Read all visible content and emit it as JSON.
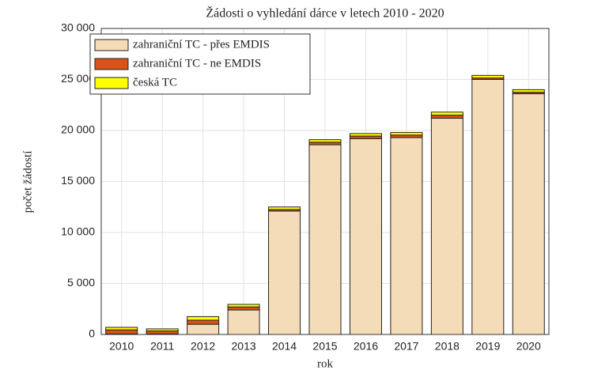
{
  "chart_data": {
    "type": "stacked_bar",
    "title": "Žádosti o vyhledání dárce v letech 2010 - 2020",
    "x_label": "rok",
    "y_label": "počet žádostí",
    "categories": [
      "2010",
      "2011",
      "2012",
      "2013",
      "2014",
      "2015",
      "2016",
      "2017",
      "2018",
      "2019",
      "2020"
    ],
    "series": [
      {
        "name": "zahraniční TC - přes EMDIS",
        "color": "#f5dcb8",
        "values": [
          50,
          50,
          1000,
          2400,
          12100,
          18600,
          19200,
          19300,
          21200,
          25000,
          23600
        ]
      },
      {
        "name": "zahraniční TC - ne EMDIS",
        "color": "#d95319",
        "values": [
          400,
          300,
          400,
          300,
          150,
          250,
          250,
          250,
          300,
          150,
          150
        ]
      },
      {
        "name": "česká TC",
        "color": "#ffff00",
        "values": [
          250,
          200,
          350,
          250,
          250,
          250,
          250,
          250,
          300,
          250,
          250
        ]
      }
    ],
    "ylim": [
      0,
      30000
    ],
    "yticks": [
      0,
      {
        "value": 5000,
        "label": "5 000"
      },
      {
        "value": 10000,
        "label": "10 000"
      },
      {
        "value": 15000,
        "label": "15 000"
      },
      {
        "value": 20000,
        "label": "20 000"
      },
      {
        "value": 25000,
        "label": "25 000"
      },
      {
        "value": 30000,
        "label": "30 000"
      }
    ],
    "grid": true,
    "legend_position": "top-left"
  }
}
